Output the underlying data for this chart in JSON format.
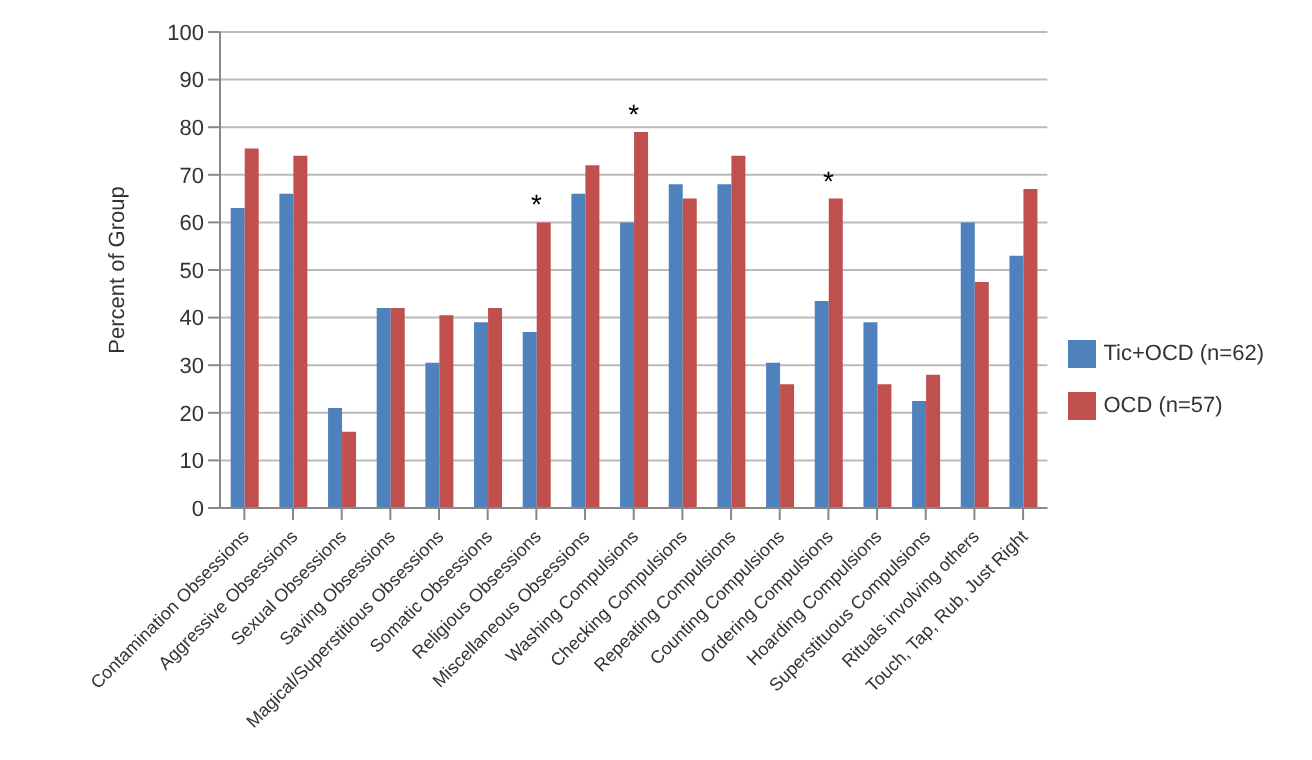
{
  "chart_data": {
    "type": "bar",
    "ylabel": "Percent of Group",
    "categories": [
      "Contamination Obsessions",
      "Aggressive Obsessions",
      "Sexual Obsessions",
      "Saving Obsessions",
      "Magical/Superstitious Obsessions",
      "Somatic Obsessions",
      "Religious Obsessions",
      "Miscellaneous Obsessions",
      "Washing Compulsions",
      "Checking Compulsions",
      "Repeating Compulsions",
      "Counting Compulsions",
      "Ordering Compulsions",
      "Hoarding Compulsions",
      "Superstituous Compulsions",
      "Rituals involving others",
      "Touch, Tap, Rub, Just Right"
    ],
    "series": [
      {
        "name": "Tic+OCD (n=62)",
        "color": "#4f81bd",
        "values": [
          63,
          66,
          21,
          42,
          30.5,
          39,
          37,
          66,
          60,
          68,
          68,
          30.5,
          43.5,
          39,
          22.5,
          60,
          53
        ]
      },
      {
        "name": "OCD (n=57)",
        "color": "#c0504d",
        "values": [
          75.5,
          74,
          16,
          42,
          40.5,
          42,
          60,
          72,
          79,
          65,
          74,
          26,
          65,
          26,
          28,
          47.5,
          67
        ]
      }
    ],
    "ylim": [
      0,
      100
    ],
    "yticks": [
      0,
      10,
      20,
      30,
      40,
      50,
      60,
      70,
      80,
      90,
      100
    ],
    "grid": "y",
    "legend": "right",
    "annotations": [
      {
        "text": "*",
        "x": "Religious Obsessions",
        "y": 60
      },
      {
        "text": "*",
        "x": "Washing Compulsions",
        "y": 79
      },
      {
        "text": "*",
        "x": "Ordering Compulsions",
        "y": 65
      }
    ]
  }
}
